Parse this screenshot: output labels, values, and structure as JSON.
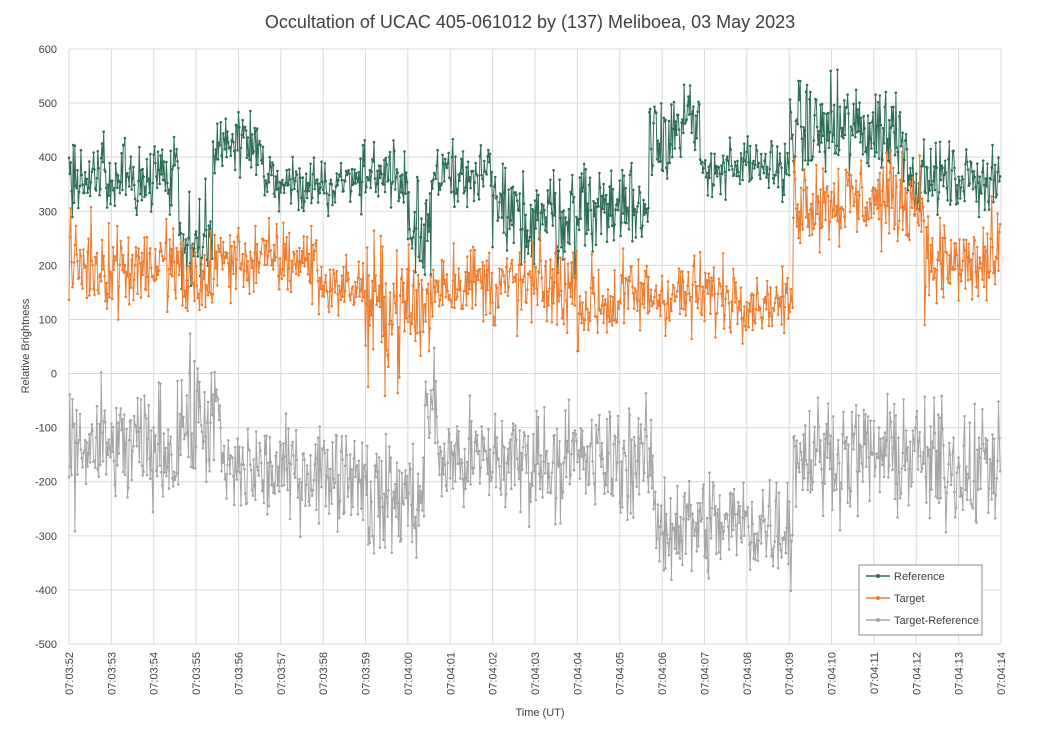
{
  "chart_data": {
    "type": "line",
    "title": "Occultation of UCAC 405-061012 by (137) Meliboea, 03 May 2023",
    "xlabel": "Time (UT)",
    "ylabel": "Relative Brightness",
    "ylim": [
      -500,
      600
    ],
    "ytick_step": 100,
    "xlim_seconds": [
      0,
      22
    ],
    "xlim": [
      "07:03:52",
      "07:04:14"
    ],
    "x_ticks": [
      "07:03:52",
      "07:03:53",
      "07:03:54",
      "07:03:55",
      "07:03:56",
      "07:03:57",
      "07:03:58",
      "07:03:59",
      "07:04:00",
      "07:04:01",
      "07:04:02",
      "07:04:03",
      "07:04:04",
      "07:04:05",
      "07:04:06",
      "07:04:07",
      "07:04:08",
      "07:04:09",
      "07:04:10",
      "07:04:11",
      "07:04:12",
      "07:04:13",
      "07:04:14"
    ],
    "grid": true,
    "legend_position": "bottom-right",
    "series": [
      {
        "name": "Reference",
        "color": "#2e6e55",
        "segments": [
          {
            "t": [
              0,
              2.0
            ],
            "level": 360,
            "noise": 35
          },
          {
            "t": [
              2.0,
              2.6
            ],
            "level": 370,
            "noise": 30
          },
          {
            "t": [
              2.6,
              3.4
            ],
            "level": 250,
            "noise": 50
          },
          {
            "t": [
              3.4,
              4.6
            ],
            "level": 420,
            "noise": 30
          },
          {
            "t": [
              4.6,
              6.5
            ],
            "level": 350,
            "noise": 25
          },
          {
            "t": [
              6.5,
              8.0
            ],
            "level": 365,
            "noise": 30
          },
          {
            "t": [
              8.0,
              8.6
            ],
            "level": 280,
            "noise": 50
          },
          {
            "t": [
              8.6,
              10.0
            ],
            "level": 370,
            "noise": 25
          },
          {
            "t": [
              10.0,
              12.0
            ],
            "level": 290,
            "noise": 45
          },
          {
            "t": [
              12.0,
              13.7
            ],
            "level": 310,
            "noise": 40
          },
          {
            "t": [
              13.7,
              14.9
            ],
            "level": 450,
            "noise": 45
          },
          {
            "t": [
              14.9,
              17.0
            ],
            "level": 380,
            "noise": 25
          },
          {
            "t": [
              17.0,
              19.8
            ],
            "level": 450,
            "noise": 45
          },
          {
            "t": [
              19.8,
              22.0
            ],
            "level": 360,
            "noise": 30
          }
        ]
      },
      {
        "name": "Target",
        "color": "#ed7d31",
        "segments": [
          {
            "t": [
              0,
              2.6
            ],
            "level": 200,
            "noise": 40
          },
          {
            "t": [
              2.6,
              3.4
            ],
            "level": 170,
            "noise": 45
          },
          {
            "t": [
              3.4,
              5.9
            ],
            "level": 210,
            "noise": 35
          },
          {
            "t": [
              5.9,
              7.0
            ],
            "level": 160,
            "noise": 25
          },
          {
            "t": [
              7.0,
              8.6
            ],
            "level": 120,
            "noise": 60
          },
          {
            "t": [
              8.6,
              10.0
            ],
            "level": 170,
            "noise": 35
          },
          {
            "t": [
              10.0,
              12.0
            ],
            "level": 160,
            "noise": 40
          },
          {
            "t": [
              12.0,
              13.0
            ],
            "level": 130,
            "noise": 40
          },
          {
            "t": [
              13.0,
              16.0
            ],
            "level": 145,
            "noise": 35
          },
          {
            "t": [
              16.0,
              17.1
            ],
            "level": 130,
            "noise": 25
          },
          {
            "t": [
              17.1,
              20.2
            ],
            "level": 320,
            "noise": 40
          },
          {
            "t": [
              20.2,
              22.0
            ],
            "level": 200,
            "noise": 45
          }
        ]
      },
      {
        "name": "Target-Reference",
        "color": "#a5a5a5",
        "segments": [
          {
            "t": [
              0,
              2.6
            ],
            "level": -140,
            "noise": 55
          },
          {
            "t": [
              2.6,
              3.6
            ],
            "level": -90,
            "noise": 60
          },
          {
            "t": [
              3.6,
              7.0
            ],
            "level": -180,
            "noise": 45
          },
          {
            "t": [
              7.0,
              8.4
            ],
            "level": -230,
            "noise": 55
          },
          {
            "t": [
              8.4,
              8.7
            ],
            "level": -60,
            "noise": 40
          },
          {
            "t": [
              8.7,
              13.8
            ],
            "level": -160,
            "noise": 50
          },
          {
            "t": [
              13.8,
              17.1
            ],
            "level": -280,
            "noise": 50
          },
          {
            "t": [
              17.1,
              20.2
            ],
            "level": -150,
            "noise": 50
          },
          {
            "t": [
              20.2,
              22.0
            ],
            "level": -170,
            "noise": 55
          }
        ]
      }
    ]
  }
}
